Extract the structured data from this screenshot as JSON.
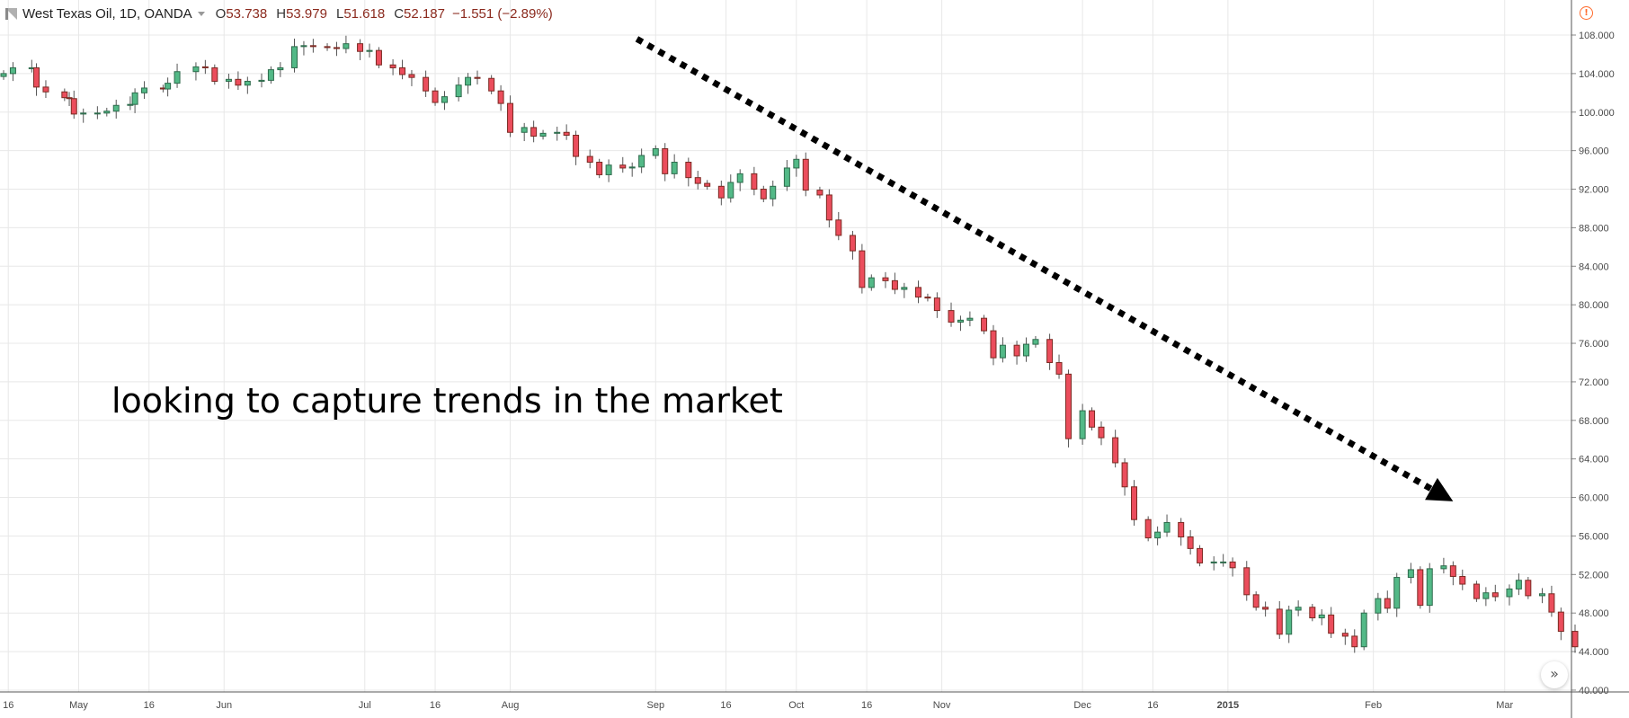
{
  "header": {
    "symbol": "West Texas Oil, 1D, OANDA",
    "open_key": "O",
    "open_val": "53.738",
    "high_key": "H",
    "high_val": "53.979",
    "low_key": "L",
    "low_val": "51.618",
    "close_key": "C",
    "close_val": "52.187",
    "change": "−1.551 (−2.89%)"
  },
  "annotation": "looking to capture trends in the market",
  "icons": {
    "warning": "warning-icon",
    "scroll": "double-chevron-right-icon",
    "logo": "tradingview-logo"
  },
  "colors": {
    "up": "#53b987",
    "down": "#eb4d5c",
    "up_border": "#2e6b4c",
    "down_border": "#7a2a22",
    "grid": "#e8e8e8",
    "arrow": "#000000"
  },
  "chart_data": {
    "type": "candlestick",
    "ylim": [
      40,
      110
    ],
    "y_ticks": [
      "108.000",
      "104.000",
      "100.000",
      "96.000",
      "92.000",
      "88.000",
      "84.000",
      "80.000",
      "76.000",
      "72.000",
      "68.000",
      "64.000",
      "60.000",
      "56.000",
      "52.000",
      "48.000",
      "44.000",
      "40.000"
    ],
    "x_labels": [
      "16",
      "May",
      "16",
      "Jun",
      "Jul",
      "16",
      "Aug",
      "Sep",
      "16",
      "Oct",
      "16",
      "Nov",
      "Dec",
      "16",
      "2015",
      "Feb",
      "Mar"
    ],
    "x_label_dates": [
      "2014-04-16",
      "2014-05-01",
      "2014-05-16",
      "2014-06-01",
      "2014-07-01",
      "2014-07-16",
      "2014-08-01",
      "2014-09-01",
      "2014-09-16",
      "2014-10-01",
      "2014-10-16",
      "2014-11-01",
      "2014-12-01",
      "2014-12-16",
      "2015-01-01",
      "2015-02-01",
      "2015-03-01"
    ],
    "x_range": [
      "2014-04-15",
      "2015-03-16"
    ],
    "grid": true,
    "trend_arrow": {
      "from": [
        "2014-08-28",
        107.6
      ],
      "to": [
        "2015-02-18",
        59.6
      ],
      "style": "dotted"
    },
    "closes": [
      [
        "2014-04-15",
        104.0
      ],
      [
        "2014-04-17",
        104.6
      ],
      [
        "2014-04-21",
        104.6
      ],
      [
        "2014-04-22",
        102.6
      ],
      [
        "2014-04-24",
        102.1
      ],
      [
        "2014-04-28",
        101.5
      ],
      [
        "2014-04-29",
        101.4
      ],
      [
        "2014-04-30",
        99.8
      ],
      [
        "2014-05-02",
        99.9
      ],
      [
        "2014-05-05",
        99.9
      ],
      [
        "2014-05-07",
        100.1
      ],
      [
        "2014-05-09",
        100.7
      ],
      [
        "2014-05-12",
        100.8
      ],
      [
        "2014-05-13",
        102.0
      ],
      [
        "2014-05-15",
        102.5
      ],
      [
        "2014-05-19",
        102.4
      ],
      [
        "2014-05-20",
        103.0
      ],
      [
        "2014-05-22",
        104.2
      ],
      [
        "2014-05-26",
        104.7
      ],
      [
        "2014-05-28",
        104.6
      ],
      [
        "2014-05-30",
        103.2
      ],
      [
        "2014-06-02",
        103.4
      ],
      [
        "2014-06-04",
        102.8
      ],
      [
        "2014-06-06",
        103.2
      ],
      [
        "2014-06-09",
        103.3
      ],
      [
        "2014-06-11",
        104.4
      ],
      [
        "2014-06-13",
        104.6
      ],
      [
        "2014-06-16",
        106.8
      ],
      [
        "2014-06-18",
        106.9
      ],
      [
        "2014-06-20",
        106.8
      ],
      [
        "2014-06-23",
        106.7
      ],
      [
        "2014-06-25",
        106.6
      ],
      [
        "2014-06-27",
        107.1
      ],
      [
        "2014-06-30",
        106.3
      ],
      [
        "2014-07-02",
        106.4
      ],
      [
        "2014-07-04",
        104.9
      ],
      [
        "2014-07-07",
        104.6
      ],
      [
        "2014-07-09",
        103.9
      ],
      [
        "2014-07-11",
        103.6
      ],
      [
        "2014-07-14",
        102.2
      ],
      [
        "2014-07-16",
        101.0
      ],
      [
        "2014-07-18",
        101.6
      ],
      [
        "2014-07-21",
        102.8
      ],
      [
        "2014-07-23",
        103.6
      ],
      [
        "2014-07-25",
        103.5
      ],
      [
        "2014-07-28",
        102.2
      ],
      [
        "2014-07-30",
        100.9
      ],
      [
        "2014-08-01",
        97.9
      ],
      [
        "2014-08-04",
        98.4
      ],
      [
        "2014-08-06",
        97.5
      ],
      [
        "2014-08-08",
        97.8
      ],
      [
        "2014-08-11",
        97.9
      ],
      [
        "2014-08-13",
        97.6
      ],
      [
        "2014-08-15",
        95.4
      ],
      [
        "2014-08-18",
        94.8
      ],
      [
        "2014-08-20",
        93.5
      ],
      [
        "2014-08-22",
        94.5
      ],
      [
        "2014-08-25",
        94.2
      ],
      [
        "2014-08-27",
        94.3
      ],
      [
        "2014-08-29",
        95.5
      ],
      [
        "2014-09-01",
        96.2
      ],
      [
        "2014-09-03",
        93.6
      ],
      [
        "2014-09-05",
        94.8
      ],
      [
        "2014-09-08",
        93.2
      ],
      [
        "2014-09-10",
        92.6
      ],
      [
        "2014-09-12",
        92.3
      ],
      [
        "2014-09-15",
        91.1
      ],
      [
        "2014-09-17",
        92.7
      ],
      [
        "2014-09-19",
        93.6
      ],
      [
        "2014-09-22",
        92.0
      ],
      [
        "2014-09-24",
        91.0
      ],
      [
        "2014-09-26",
        92.3
      ],
      [
        "2014-09-29",
        94.2
      ],
      [
        "2014-10-01",
        95.1
      ],
      [
        "2014-10-03",
        91.9
      ],
      [
        "2014-10-06",
        91.4
      ],
      [
        "2014-10-08",
        88.8
      ],
      [
        "2014-10-10",
        87.2
      ],
      [
        "2014-10-13",
        85.6
      ],
      [
        "2014-10-15",
        81.8
      ],
      [
        "2014-10-17",
        82.8
      ],
      [
        "2014-10-20",
        82.5
      ],
      [
        "2014-10-22",
        81.6
      ],
      [
        "2014-10-24",
        81.8
      ],
      [
        "2014-10-27",
        80.8
      ],
      [
        "2014-10-29",
        80.7
      ],
      [
        "2014-10-31",
        79.4
      ],
      [
        "2014-11-03",
        78.2
      ],
      [
        "2014-11-05",
        78.4
      ],
      [
        "2014-11-07",
        78.6
      ],
      [
        "2014-11-10",
        77.3
      ],
      [
        "2014-11-12",
        74.5
      ],
      [
        "2014-11-14",
        75.8
      ],
      [
        "2014-11-17",
        74.7
      ],
      [
        "2014-11-19",
        75.9
      ],
      [
        "2014-11-21",
        76.4
      ],
      [
        "2014-11-24",
        74.0
      ],
      [
        "2014-11-26",
        72.8
      ],
      [
        "2014-11-28",
        66.1
      ],
      [
        "2014-12-01",
        69.0
      ],
      [
        "2014-12-03",
        67.3
      ],
      [
        "2014-12-05",
        66.2
      ],
      [
        "2014-12-08",
        63.6
      ],
      [
        "2014-12-10",
        61.1
      ],
      [
        "2014-12-12",
        57.7
      ],
      [
        "2014-12-15",
        55.8
      ],
      [
        "2014-12-17",
        56.4
      ],
      [
        "2014-12-19",
        57.4
      ],
      [
        "2014-12-22",
        55.9
      ],
      [
        "2014-12-24",
        54.7
      ],
      [
        "2014-12-26",
        53.2
      ],
      [
        "2014-12-29",
        53.3
      ],
      [
        "2014-12-31",
        53.3
      ],
      [
        "2015-01-02",
        52.7
      ],
      [
        "2015-01-05",
        49.9
      ],
      [
        "2015-01-07",
        48.6
      ],
      [
        "2015-01-09",
        48.4
      ],
      [
        "2015-01-12",
        45.8
      ],
      [
        "2015-01-14",
        48.3
      ],
      [
        "2015-01-16",
        48.6
      ],
      [
        "2015-01-19",
        47.5
      ],
      [
        "2015-01-21",
        47.8
      ],
      [
        "2015-01-23",
        45.9
      ],
      [
        "2015-01-26",
        45.6
      ],
      [
        "2015-01-28",
        44.5
      ],
      [
        "2015-01-30",
        48.0
      ],
      [
        "2015-02-02",
        49.5
      ],
      [
        "2015-02-04",
        48.5
      ],
      [
        "2015-02-06",
        51.7
      ],
      [
        "2015-02-09",
        52.5
      ],
      [
        "2015-02-11",
        48.8
      ],
      [
        "2015-02-13",
        52.6
      ],
      [
        "2015-02-16",
        52.9
      ],
      [
        "2015-02-18",
        51.8
      ],
      [
        "2015-02-20",
        51.0
      ],
      [
        "2015-02-23",
        49.5
      ],
      [
        "2015-02-25",
        50.1
      ],
      [
        "2015-02-27",
        49.7
      ],
      [
        "2015-03-02",
        50.5
      ],
      [
        "2015-03-04",
        51.4
      ],
      [
        "2015-03-06",
        49.8
      ],
      [
        "2015-03-09",
        50.0
      ],
      [
        "2015-03-11",
        48.1
      ],
      [
        "2015-03-13",
        46.1
      ],
      [
        "2015-03-16",
        44.5
      ]
    ]
  }
}
